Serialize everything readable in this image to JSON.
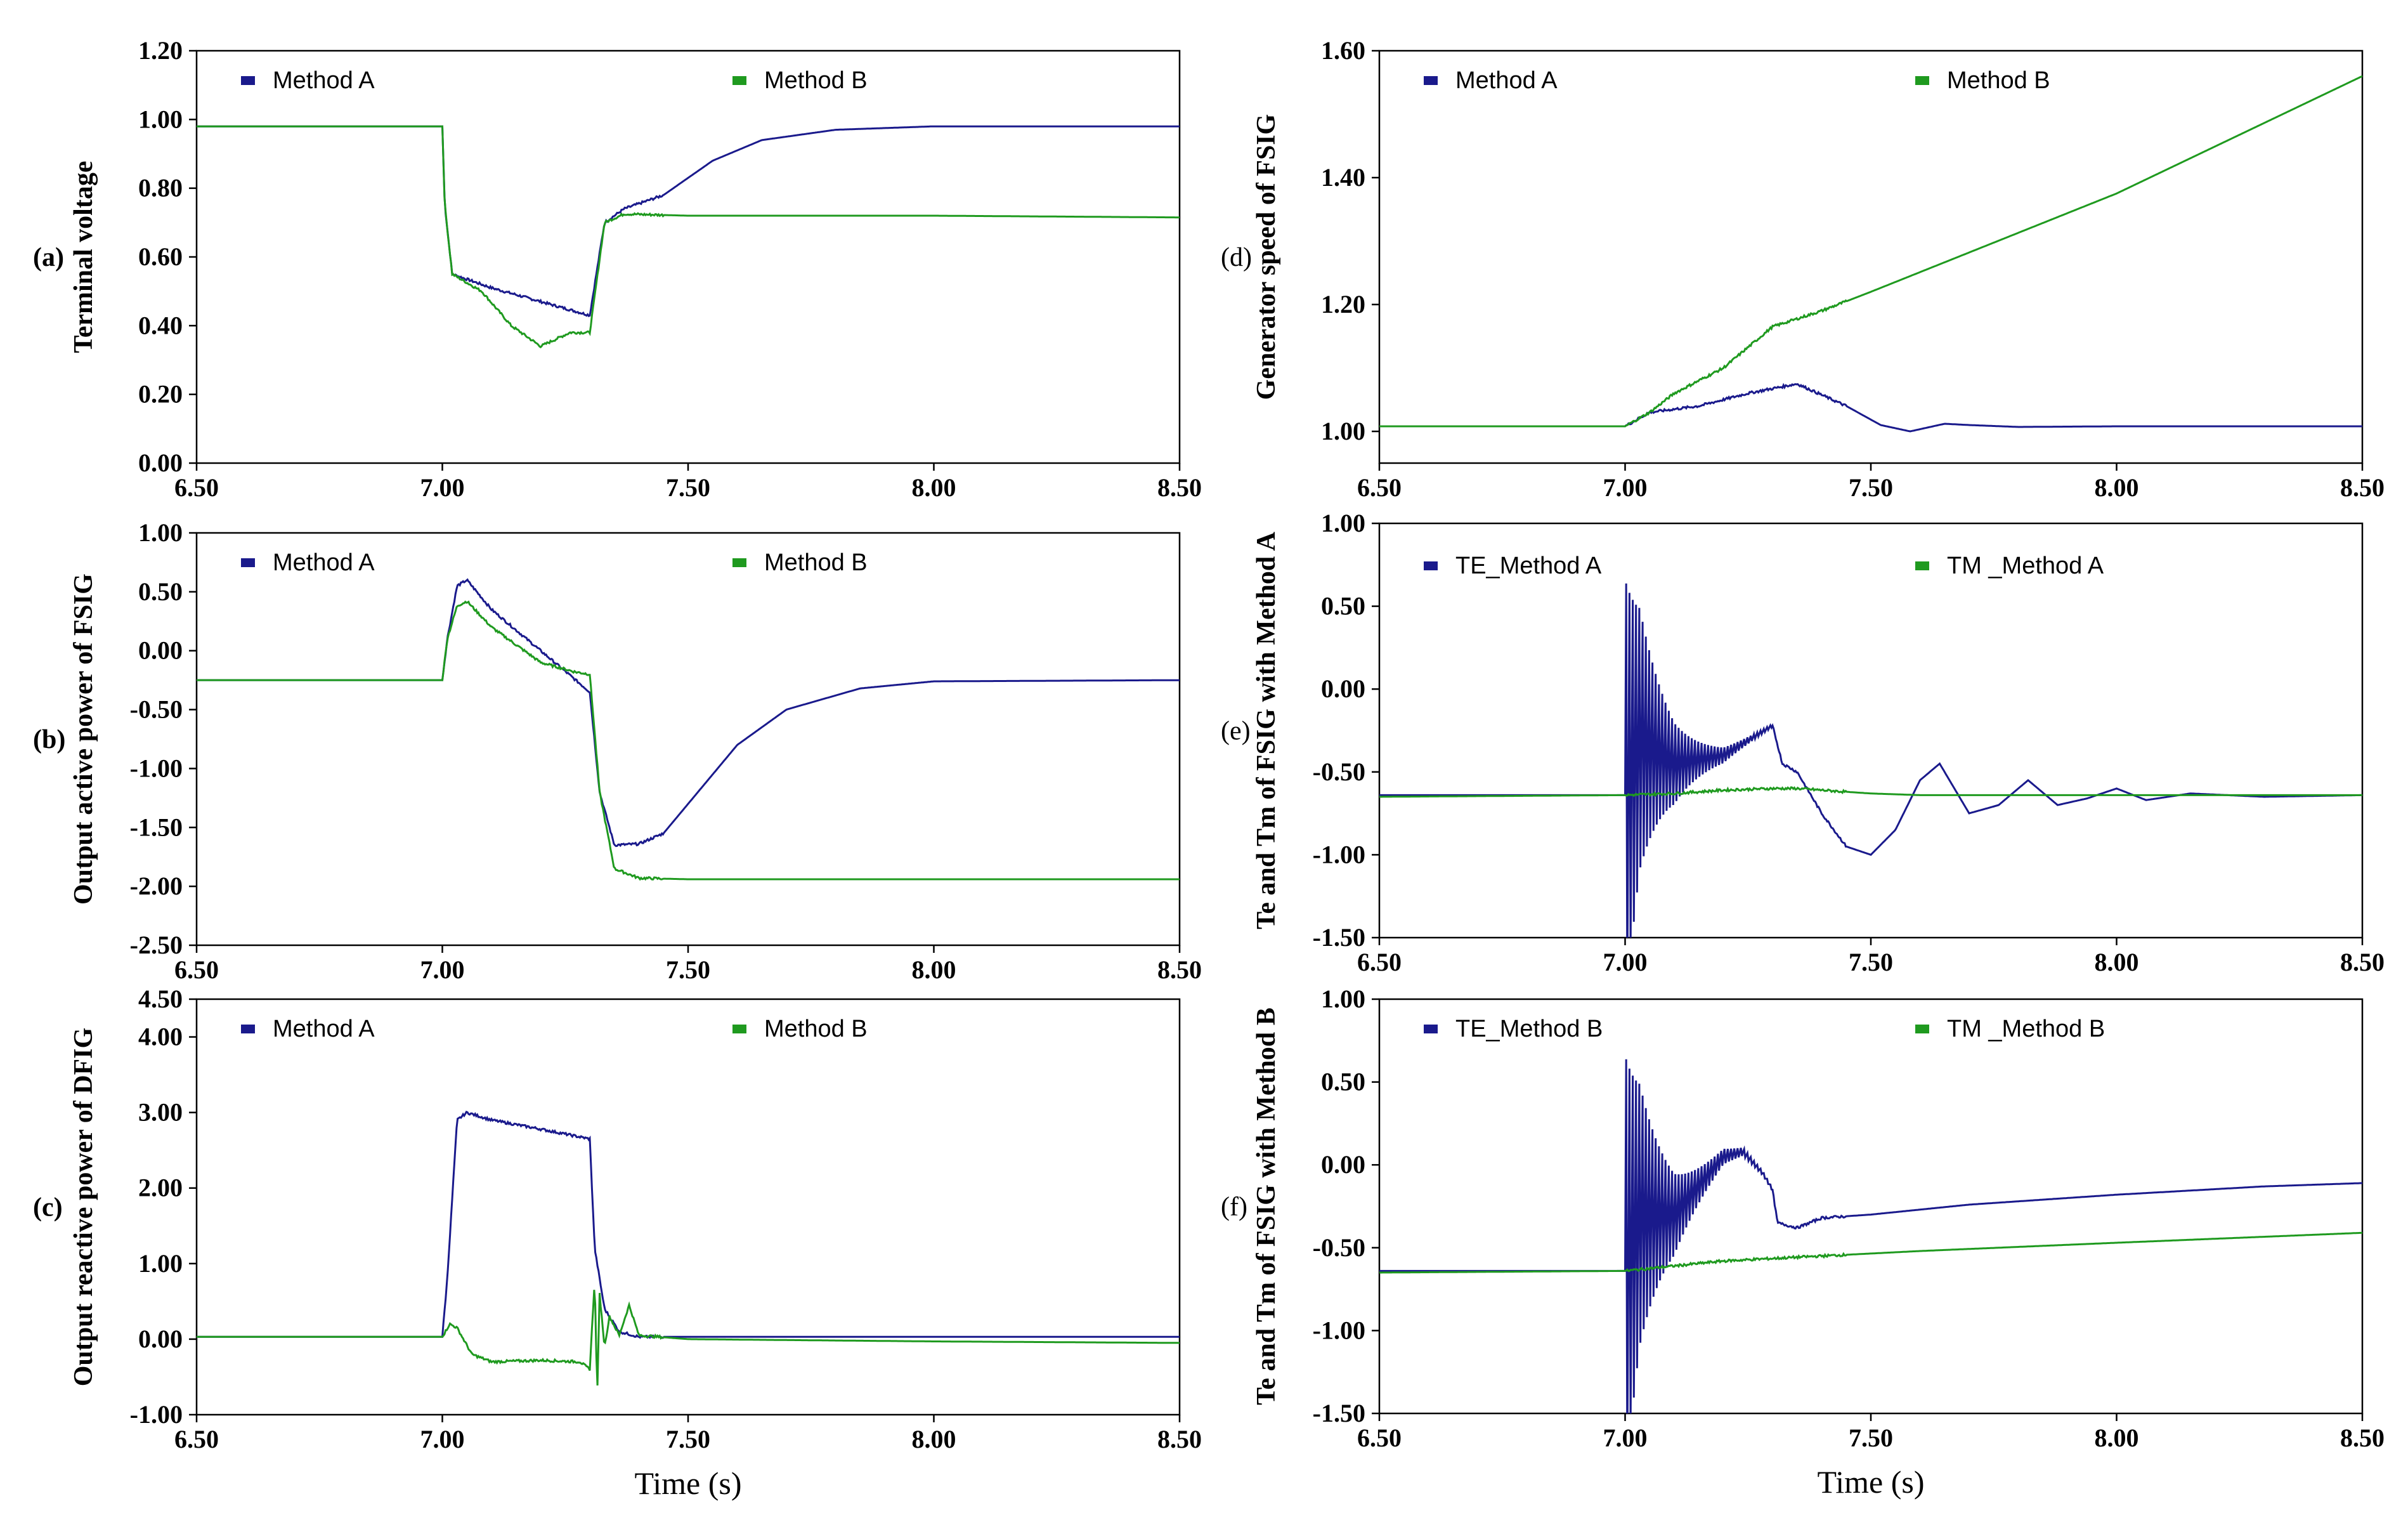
{
  "colors": {
    "series_a": "#1a1a8c",
    "series_b": "#1f9a1f",
    "axis": "#000000"
  },
  "x_axis_title": "Time (s)",
  "chart_data": [
    {
      "type": "line",
      "panel_label": "(a)",
      "ylabel": "Terminal voltage",
      "xlabel": "",
      "xlim": [
        6.5,
        8.5
      ],
      "ylim": [
        0.0,
        1.2
      ],
      "xticks": [
        "6.50",
        "7.00",
        "7.50",
        "8.00",
        "8.50"
      ],
      "yticks": [
        "0.00",
        "0.20",
        "0.40",
        "0.60",
        "0.80",
        "1.00",
        "1.20"
      ],
      "legend": "top",
      "series": [
        {
          "name": "Method A",
          "x": [
            6.5,
            7.0,
            7.005,
            7.02,
            7.1,
            7.2,
            7.3,
            7.33,
            7.37,
            7.45,
            7.55,
            7.65,
            7.8,
            8.0,
            8.5
          ],
          "y": [
            0.98,
            0.98,
            0.75,
            0.55,
            0.51,
            0.47,
            0.43,
            0.7,
            0.74,
            0.78,
            0.88,
            0.94,
            0.97,
            0.98,
            0.98
          ]
        },
        {
          "name": "Method B",
          "x": [
            6.5,
            7.0,
            7.005,
            7.02,
            7.08,
            7.14,
            7.2,
            7.26,
            7.3,
            7.33,
            7.37,
            7.5,
            8.0,
            8.5
          ],
          "y": [
            0.98,
            0.98,
            0.75,
            0.55,
            0.5,
            0.4,
            0.34,
            0.38,
            0.38,
            0.7,
            0.725,
            0.72,
            0.72,
            0.715
          ]
        }
      ]
    },
    {
      "type": "line",
      "panel_label": "(b)",
      "ylabel": "Output active power of FSIG",
      "xlabel": "",
      "xlim": [
        6.5,
        8.5
      ],
      "ylim": [
        -2.5,
        1.0
      ],
      "xticks": [
        "6.50",
        "7.00",
        "7.50",
        "8.00",
        "8.50"
      ],
      "yticks": [
        "-2.50",
        "-2.00",
        "-1.50",
        "-1.00",
        "-0.50",
        "0.00",
        "0.50",
        "1.00"
      ],
      "legend": "top",
      "series": [
        {
          "name": "Method A",
          "x": [
            6.5,
            7.0,
            7.01,
            7.03,
            7.05,
            7.1,
            7.2,
            7.3,
            7.32,
            7.35,
            7.4,
            7.45,
            7.5,
            7.6,
            7.7,
            7.85,
            8.0,
            8.5
          ],
          "y": [
            -0.25,
            -0.25,
            0.1,
            0.55,
            0.6,
            0.35,
            0.0,
            -0.35,
            -1.2,
            -1.65,
            -1.64,
            -1.55,
            -1.3,
            -0.8,
            -0.5,
            -0.32,
            -0.26,
            -0.25
          ]
        },
        {
          "name": "Method B",
          "x": [
            6.5,
            7.0,
            7.01,
            7.03,
            7.05,
            7.1,
            7.2,
            7.27,
            7.3,
            7.32,
            7.35,
            7.4,
            7.5,
            8.0,
            8.5
          ],
          "y": [
            -0.25,
            -0.25,
            0.1,
            0.38,
            0.42,
            0.2,
            -0.1,
            -0.18,
            -0.2,
            -1.2,
            -1.85,
            -1.93,
            -1.94,
            -1.94,
            -1.94
          ]
        }
      ]
    },
    {
      "type": "line",
      "panel_label": "(c)",
      "ylabel": "Output reactive power of DFIG",
      "xlabel": "Time (s)",
      "xlim": [
        6.5,
        8.5
      ],
      "ylim": [
        -1.0,
        4.5
      ],
      "xticks": [
        "6.50",
        "7.00",
        "7.50",
        "8.00",
        "8.50"
      ],
      "yticks": [
        "-1.00",
        "0.00",
        "1.00",
        "2.00",
        "3.00",
        "4.00",
        "4.50"
      ],
      "legend": "top",
      "series": [
        {
          "name": "Method A",
          "x": [
            6.5,
            7.0,
            7.01,
            7.03,
            7.05,
            7.1,
            7.2,
            7.3,
            7.31,
            7.33,
            7.36,
            7.4,
            8.0,
            8.5
          ],
          "y": [
            0.03,
            0.03,
            0.8,
            2.9,
            3.0,
            2.9,
            2.78,
            2.65,
            1.2,
            0.4,
            0.1,
            0.03,
            0.03,
            0.03
          ]
        },
        {
          "name": "Method B",
          "x": [
            6.5,
            7.0,
            7.015,
            7.03,
            7.06,
            7.1,
            7.2,
            7.28,
            7.3,
            7.31,
            7.315,
            7.32,
            7.33,
            7.34,
            7.36,
            7.38,
            7.4,
            7.5,
            8.0,
            8.5
          ],
          "y": [
            0.03,
            0.03,
            0.2,
            0.15,
            -0.2,
            -0.3,
            -0.28,
            -0.3,
            -0.4,
            0.8,
            -0.75,
            0.6,
            -0.1,
            0.3,
            0.05,
            0.45,
            0.05,
            0.0,
            -0.03,
            -0.05
          ]
        }
      ]
    },
    {
      "type": "line",
      "panel_label": "(d)",
      "ylabel": "Generator speed of FSIG",
      "xlabel": "",
      "xlim": [
        6.5,
        8.5
      ],
      "ylim": [
        0.95,
        1.6
      ],
      "xticks": [
        "6.50",
        "7.00",
        "7.50",
        "8.00",
        "8.50"
      ],
      "yticks": [
        "1.00",
        "1.20",
        "1.40",
        "1.60"
      ],
      "legend": "top",
      "series": [
        {
          "name": "Method A",
          "x": [
            6.5,
            7.0,
            7.05,
            7.15,
            7.25,
            7.35,
            7.45,
            7.52,
            7.58,
            7.65,
            7.7,
            7.8,
            8.0,
            8.5
          ],
          "y": [
            1.008,
            1.008,
            1.03,
            1.04,
            1.06,
            1.075,
            1.04,
            1.01,
            1.0,
            1.012,
            1.01,
            1.007,
            1.008,
            1.008
          ]
        },
        {
          "name": "Method B",
          "x": [
            6.5,
            7.0,
            7.05,
            7.1,
            7.2,
            7.3,
            7.4,
            7.5,
            8.0,
            8.5
          ],
          "y": [
            1.008,
            1.008,
            1.03,
            1.06,
            1.1,
            1.165,
            1.19,
            1.22,
            1.375,
            1.56
          ]
        }
      ]
    },
    {
      "type": "line",
      "panel_label": "(e)",
      "ylabel": "Te and Tm of FSIG with Method A",
      "xlabel": "",
      "xlim": [
        6.5,
        8.5
      ],
      "ylim": [
        -1.5,
        1.0
      ],
      "xticks": [
        "6.50",
        "7.00",
        "7.50",
        "8.00",
        "8.50"
      ],
      "yticks": [
        "-1.50",
        "-1.00",
        "-0.50",
        "0.00",
        "0.50",
        "1.00"
      ],
      "legend": "top",
      "series": [
        {
          "name": "TE_Method A",
          "x": [
            6.5,
            7.0,
            7.03,
            7.1,
            7.2,
            7.3,
            7.32,
            7.35,
            7.4,
            7.45,
            7.5,
            7.55,
            7.6,
            7.64,
            7.7,
            7.76,
            7.82,
            7.88,
            7.94,
            8.0,
            8.06,
            8.15,
            8.3,
            8.5
          ],
          "y": [
            -0.64,
            -0.64,
            -0.3,
            -0.45,
            -0.4,
            -0.22,
            -0.45,
            -0.5,
            -0.75,
            -0.95,
            -1.0,
            -0.85,
            -0.55,
            -0.45,
            -0.75,
            -0.7,
            -0.55,
            -0.7,
            -0.66,
            -0.6,
            -0.67,
            -0.63,
            -0.65,
            -0.64
          ]
        },
        {
          "name": "TM _Method A",
          "x": [
            6.5,
            7.0,
            7.1,
            7.2,
            7.3,
            7.35,
            7.4,
            7.5,
            7.6,
            7.8,
            8.0,
            8.5
          ],
          "y": [
            -0.65,
            -0.64,
            -0.63,
            -0.61,
            -0.6,
            -0.6,
            -0.61,
            -0.63,
            -0.64,
            -0.64,
            -0.64,
            -0.64
          ]
        }
      ]
    },
    {
      "type": "line",
      "panel_label": "(f)",
      "ylabel": "Te and Tm of FSIG with Method B",
      "xlabel": "Time (s)",
      "xlim": [
        6.5,
        8.5
      ],
      "ylim": [
        -1.5,
        1.0
      ],
      "xticks": [
        "6.50",
        "7.00",
        "7.50",
        "8.00",
        "8.50"
      ],
      "yticks": [
        "-1.50",
        "-1.00",
        "-0.50",
        "0.00",
        "0.50",
        "1.00"
      ],
      "legend": "top",
      "series": [
        {
          "name": "TE_Method B",
          "x": [
            6.5,
            7.0,
            7.03,
            7.1,
            7.2,
            7.24,
            7.28,
            7.3,
            7.31,
            7.35,
            7.4,
            7.5,
            7.7,
            8.0,
            8.3,
            8.5
          ],
          "y": [
            -0.64,
            -0.64,
            -0.3,
            -0.3,
            0.05,
            0.08,
            -0.05,
            -0.15,
            -0.35,
            -0.38,
            -0.32,
            -0.3,
            -0.24,
            -0.18,
            -0.13,
            -0.11
          ]
        },
        {
          "name": "TM _Method B",
          "x": [
            6.5,
            7.0,
            7.2,
            7.4,
            7.6,
            8.0,
            8.5
          ],
          "y": [
            -0.65,
            -0.64,
            -0.58,
            -0.55,
            -0.52,
            -0.47,
            -0.41
          ]
        }
      ]
    }
  ]
}
